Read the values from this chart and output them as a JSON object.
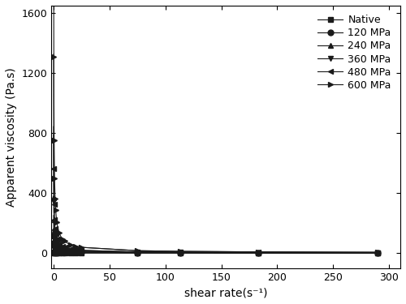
{
  "title": "",
  "xlabel": "shear rate(s⁻¹)",
  "ylabel": "Apparent viscosity (Pa.s)",
  "xlim": [
    -2,
    310
  ],
  "ylim": [
    -100,
    1650
  ],
  "yticks": [
    0,
    400,
    800,
    1200,
    1600
  ],
  "xticks": [
    0,
    50,
    100,
    150,
    200,
    250,
    300
  ],
  "background_color": "#ffffff",
  "series": [
    {
      "label": "Native",
      "marker": "s",
      "color": "#1a1a1a",
      "K": 2.0,
      "n": 0.5,
      "x_sparse": [
        25.0,
        75.0,
        113.0,
        183.0,
        290.0
      ]
    },
    {
      "label": "120 MPa",
      "marker": "o",
      "color": "#1a1a1a",
      "K": 50.0,
      "n": 0.3,
      "x_sparse": [
        25.0,
        75.0,
        113.0,
        183.0,
        290.0
      ]
    },
    {
      "label": "240 MPa",
      "marker": "^",
      "color": "#1a1a1a",
      "K": 150.0,
      "n": 0.25,
      "x_sparse": [
        25.0,
        75.0,
        113.0,
        183.0,
        290.0
      ]
    },
    {
      "label": "360 MPa",
      "marker": "v",
      "color": "#1a1a1a",
      "K": 140.0,
      "n": 0.25,
      "x_sparse": [
        25.0,
        75.0,
        113.0,
        183.0,
        290.0
      ]
    },
    {
      "label": "480 MPa",
      "marker": "<",
      "color": "#1a1a1a",
      "K": 220.0,
      "n": 0.22,
      "x_sparse": [
        25.0,
        75.0,
        113.0,
        183.0,
        290.0
      ]
    },
    {
      "label": "600 MPa",
      "marker": ">",
      "color": "#1a1a1a",
      "K": 500.0,
      "n": 0.2,
      "x_sparse": [
        25.0,
        75.0,
        113.0,
        183.0,
        290.0
      ]
    }
  ]
}
